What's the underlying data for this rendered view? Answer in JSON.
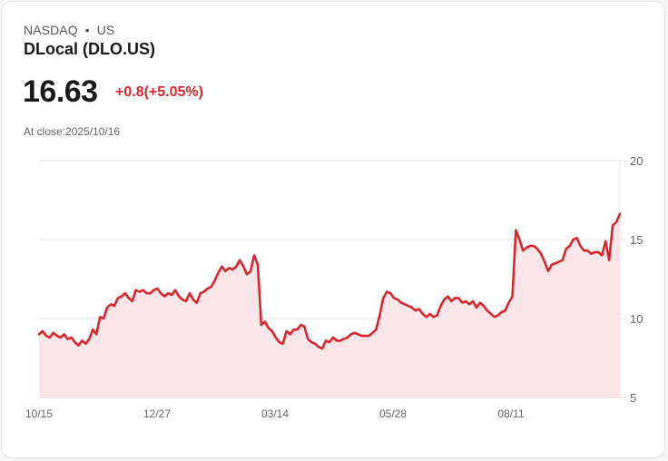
{
  "header": {
    "exchange": "NASDAQ",
    "separator": "•",
    "market": "US",
    "title": "DLocal (DLO.US)"
  },
  "quote": {
    "price": "16.63",
    "change": "+0.8(+5.05%)",
    "change_color": "#d9262c",
    "close_label": "At close:2025/10/16"
  },
  "chart_data": {
    "type": "area",
    "title": "DLocal (DLO.US)",
    "xlabel": "",
    "ylabel": "",
    "ylim": [
      5,
      20
    ],
    "yticks": [
      5,
      10,
      15,
      20
    ],
    "xticks": [
      "10/15",
      "12/27",
      "03/14",
      "05/28",
      "08/11"
    ],
    "grid": true,
    "line_color": "#d9262c",
    "fill_color": "#fbe6e7",
    "series": [
      {
        "name": "DLO.US",
        "values": [
          9.0,
          9.2,
          8.9,
          8.8,
          9.1,
          8.9,
          8.8,
          9.0,
          8.7,
          8.8,
          8.5,
          8.3,
          8.6,
          8.4,
          8.7,
          9.3,
          9.0,
          10.1,
          10.0,
          10.7,
          10.9,
          10.8,
          11.3,
          11.4,
          11.6,
          11.3,
          11.1,
          11.8,
          11.7,
          11.8,
          11.6,
          11.6,
          11.8,
          11.9,
          11.6,
          11.4,
          11.6,
          11.5,
          11.8,
          11.4,
          11.2,
          11.1,
          11.6,
          11.2,
          11.0,
          11.6,
          11.7,
          11.9,
          12.0,
          12.4,
          12.9,
          13.3,
          13.0,
          13.2,
          13.1,
          13.3,
          13.7,
          13.3,
          12.8,
          13.0,
          14.0,
          13.4,
          9.6,
          9.8,
          9.4,
          9.2,
          8.8,
          8.5,
          8.4,
          9.2,
          9.0,
          9.3,
          9.3,
          9.6,
          9.5,
          8.7,
          8.5,
          8.4,
          8.2,
          8.1,
          8.6,
          8.5,
          8.8,
          8.6,
          8.6,
          8.7,
          8.8,
          9.0,
          9.1,
          9.0,
          8.9,
          8.9,
          8.9,
          9.1,
          9.3,
          10.2,
          11.3,
          11.7,
          11.6,
          11.3,
          11.2,
          11.0,
          10.9,
          10.8,
          10.7,
          10.5,
          10.6,
          10.3,
          10.1,
          10.3,
          10.1,
          10.2,
          10.8,
          11.2,
          11.4,
          11.1,
          11.3,
          11.3,
          11.0,
          11.1,
          10.9,
          11.1,
          10.7,
          11.0,
          10.8,
          10.5,
          10.3,
          10.1,
          10.2,
          10.4,
          10.5,
          11.0,
          11.4,
          15.6,
          15.0,
          14.3,
          14.5,
          14.6,
          14.6,
          14.4,
          14.1,
          13.6,
          13.0,
          13.4,
          13.5,
          13.6,
          13.7,
          14.4,
          14.6,
          15.0,
          15.1,
          14.6,
          14.3,
          14.3,
          14.1,
          14.2,
          14.2,
          14.0,
          14.9,
          13.7,
          15.9,
          16.1,
          16.63
        ]
      }
    ]
  },
  "axes": {
    "y_labels": [
      "20",
      "15",
      "10",
      "5"
    ],
    "x_labels": [
      "10/15",
      "12/27",
      "03/14",
      "05/28",
      "08/11"
    ]
  }
}
